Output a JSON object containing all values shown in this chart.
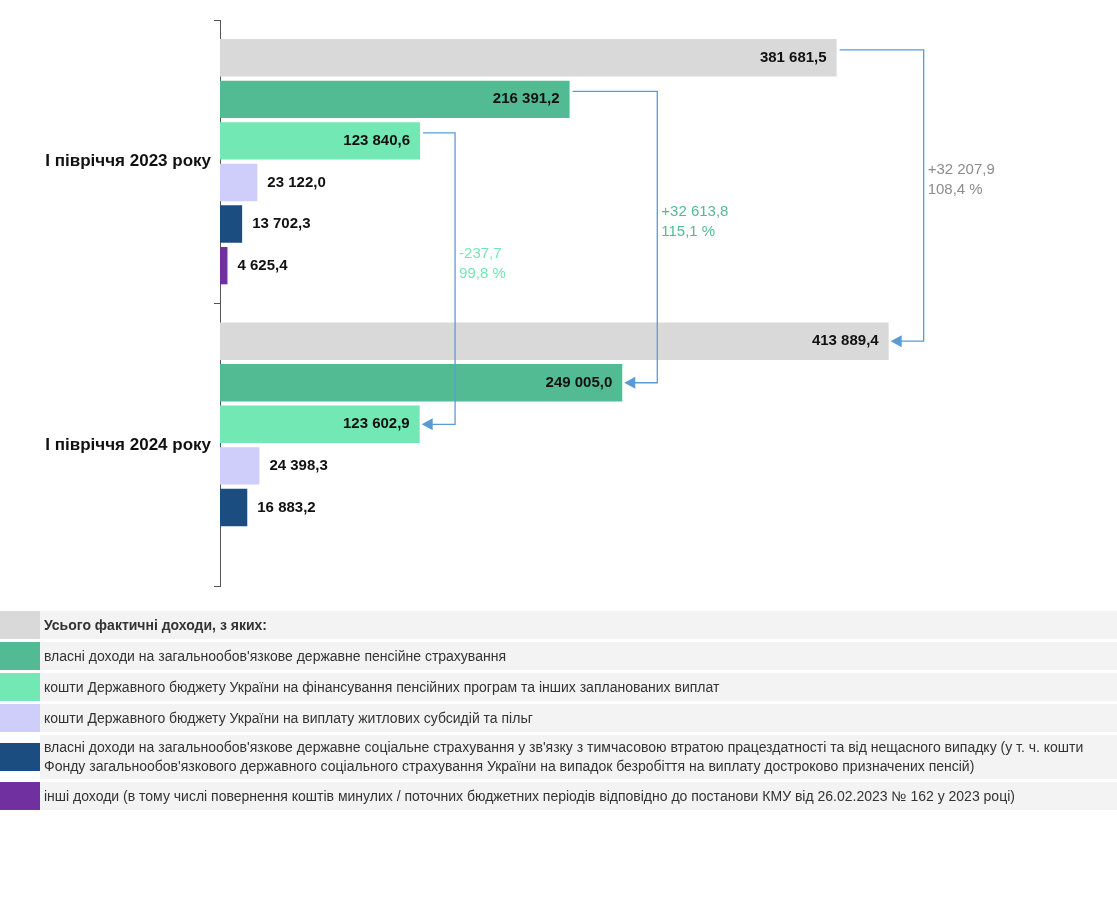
{
  "chart_data": {
    "type": "bar",
    "orientation": "horizontal",
    "categories": [
      "І півріччя 2023 року",
      "І півріччя 2024 року"
    ],
    "series": [
      {
        "name": "Усього фактичні доходи, з яких:",
        "color": "#d9d9d9",
        "values": [
          381681.5,
          413889.4
        ],
        "value_labels": [
          "381 681,5",
          "413 889,4"
        ]
      },
      {
        "name": "власні доходи на загальнообов'язкове державне пенсійне страхування",
        "color": "#52bb93",
        "values": [
          216391.2,
          249005.0
        ],
        "value_labels": [
          "216 391,2",
          "249 005,0"
        ]
      },
      {
        "name": "кошти Державного бюджету України на фінансування пенсійних програм та інших запланованих виплат",
        "color": "#72e8b4",
        "values": [
          123840.6,
          123602.9
        ],
        "value_labels": [
          "123 840,6",
          "123 602,9"
        ]
      },
      {
        "name": "кошти Державного бюджету України на виплату житлових субсидій та пільг",
        "color": "#cfcdfa",
        "values": [
          23122.0,
          24398.3
        ],
        "value_labels": [
          "23 122,0",
          "24 398,3"
        ]
      },
      {
        "name": "власні доходи на загальнообов'язкове державне соціальне страхування у зв'язку з тимчасовою втратою працездатності та від нещасного випадку (у т. ч. кошти Фонду загальнообов'язкового державного соціального страхування України на випадок безробіття на виплату достроково призначених пенсій)",
        "color": "#1b4d80",
        "values": [
          13702.3,
          16883.2
        ],
        "value_labels": [
          "13 702,3",
          "16 883,2"
        ]
      },
      {
        "name": "інші доходи (в тому числі повернення коштів минулих / поточних бюджетних періодів відповідно до постанови КМУ від 26.02.2023 № 162 у 2023 році)",
        "color": "#7030a0",
        "values": [
          4625.4,
          null
        ],
        "value_labels": [
          "4 625,4",
          null
        ]
      }
    ],
    "annotations": [
      "-237,7\n99,8 %",
      "+32 613,8\n115,1 %",
      "+32 207,9\n108,4 %"
    ],
    "legend": "bottom",
    "grid": false,
    "tick_labels": "y"
  }
}
